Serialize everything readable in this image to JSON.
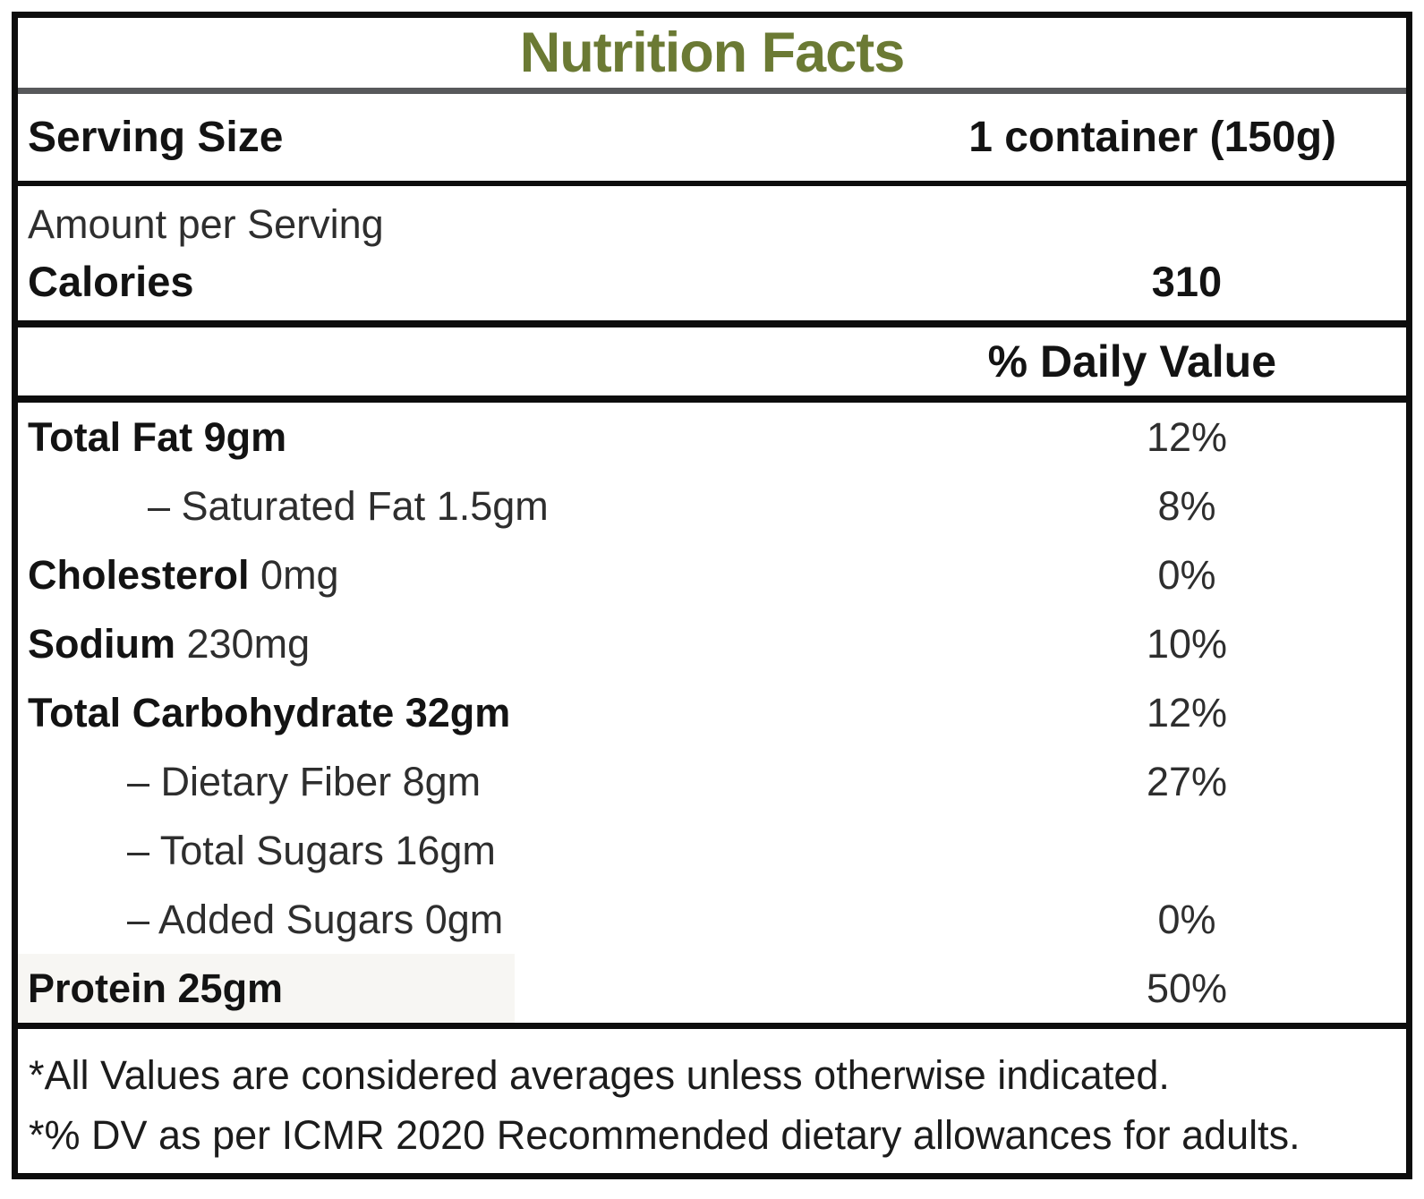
{
  "title": "Nutrition Facts",
  "colors": {
    "title_green": "#6b7a34",
    "title_separator_gray": "#58595b",
    "border_black": "#0d0d0d",
    "protein_highlight": "#f7f6f3"
  },
  "serving": {
    "label": "Serving Size",
    "value": "1 container (150g)"
  },
  "calories": {
    "subheading": "Amount per Serving",
    "label": "Calories",
    "value": "310"
  },
  "daily_value_header": "% Daily Value",
  "rows": [
    {
      "bold": "Total Fat 9gm",
      "rest": "",
      "pct": "12%"
    },
    {
      "bold": "",
      "rest": "– Saturated Fat 1.5gm",
      "pct": "8%"
    },
    {
      "bold": "Cholesterol",
      "rest": " 0mg",
      "pct": "0%"
    },
    {
      "bold": "Sodium",
      "rest": " 230mg",
      "pct": "10%"
    },
    {
      "bold": "Total Carbohydrate 32gm",
      "rest": "",
      "pct": "12%"
    },
    {
      "bold": "",
      "rest": "– Dietary Fiber 8gm",
      "pct": "27%"
    },
    {
      "bold": "",
      "rest": "– Total Sugars 16gm",
      "pct": ""
    },
    {
      "bold": "",
      "rest": "– Added Sugars 0gm",
      "pct": "0%"
    },
    {
      "bold": "Protein 25gm",
      "rest": "",
      "pct": "50%"
    }
  ],
  "footnotes": [
    "*All Values are considered averages unless otherwise indicated.",
    "*% DV as per ICMR 2020 Recommended dietary allowances for adults."
  ]
}
